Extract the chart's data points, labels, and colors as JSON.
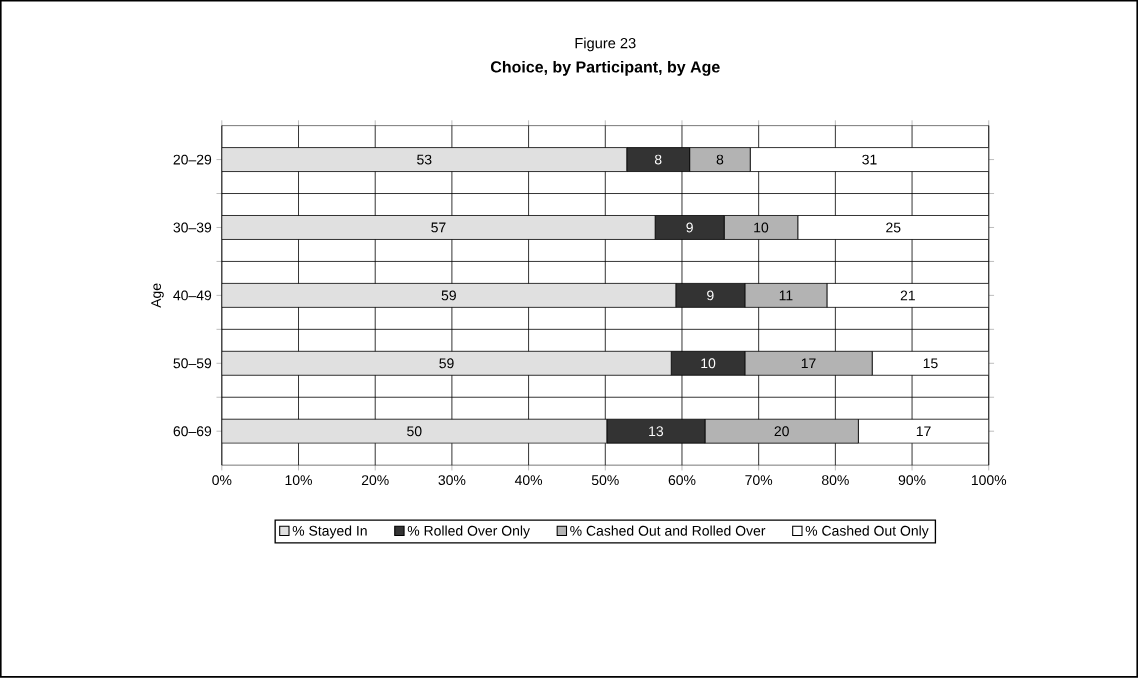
{
  "chart_data": {
    "type": "bar",
    "orientation": "horizontal",
    "stacked": true,
    "title": "Figure 23",
    "subtitle": "Choice, by Participant, by Age",
    "ylabel": "Age",
    "categories": [
      "20–29",
      "30–39",
      "40–49",
      "50–59",
      "60–69"
    ],
    "series": [
      {
        "name": "% Stayed In",
        "color": "#e0e0e0",
        "values": [
          52.8,
          56.5,
          59.2,
          58.6,
          50.2
        ],
        "value_labels": [
          "53",
          "57",
          "59",
          "59",
          "50"
        ]
      },
      {
        "name": "% Rolled Over Only",
        "color": "#333333",
        "values": [
          8.2,
          9,
          9,
          9.6,
          12.8
        ],
        "value_labels": [
          "8",
          "9",
          "9",
          "10",
          "13"
        ]
      },
      {
        "name": "% Cashed Out and Rolled Over",
        "color": "#b3b3b3",
        "values": [
          7.9,
          9.6,
          10.7,
          16.6,
          20
        ],
        "value_labels": [
          "8",
          "10",
          "11",
          "17",
          "20"
        ]
      },
      {
        "name": "% Cashed Out Only",
        "color": "#ffffff",
        "values": [
          31.1,
          24.9,
          21.1,
          15.2,
          17
        ],
        "value_labels": [
          "31",
          "25",
          "21",
          "15",
          "17"
        ]
      }
    ],
    "xlim": [
      0,
      100
    ],
    "xticks": [
      {
        "value": 0,
        "label": "0%"
      },
      {
        "value": 10,
        "label": "10%"
      },
      {
        "value": 20,
        "label": "20%"
      },
      {
        "value": 30,
        "label": "30%"
      },
      {
        "value": 40,
        "label": "40%"
      },
      {
        "value": 50,
        "label": "50%"
      },
      {
        "value": 60,
        "label": "60%"
      },
      {
        "value": 70,
        "label": "70%"
      },
      {
        "value": 80,
        "label": "80%"
      },
      {
        "value": 90,
        "label": "90%"
      },
      {
        "value": 100,
        "label": "100%"
      }
    ],
    "grid": true,
    "legend": "bottom"
  }
}
